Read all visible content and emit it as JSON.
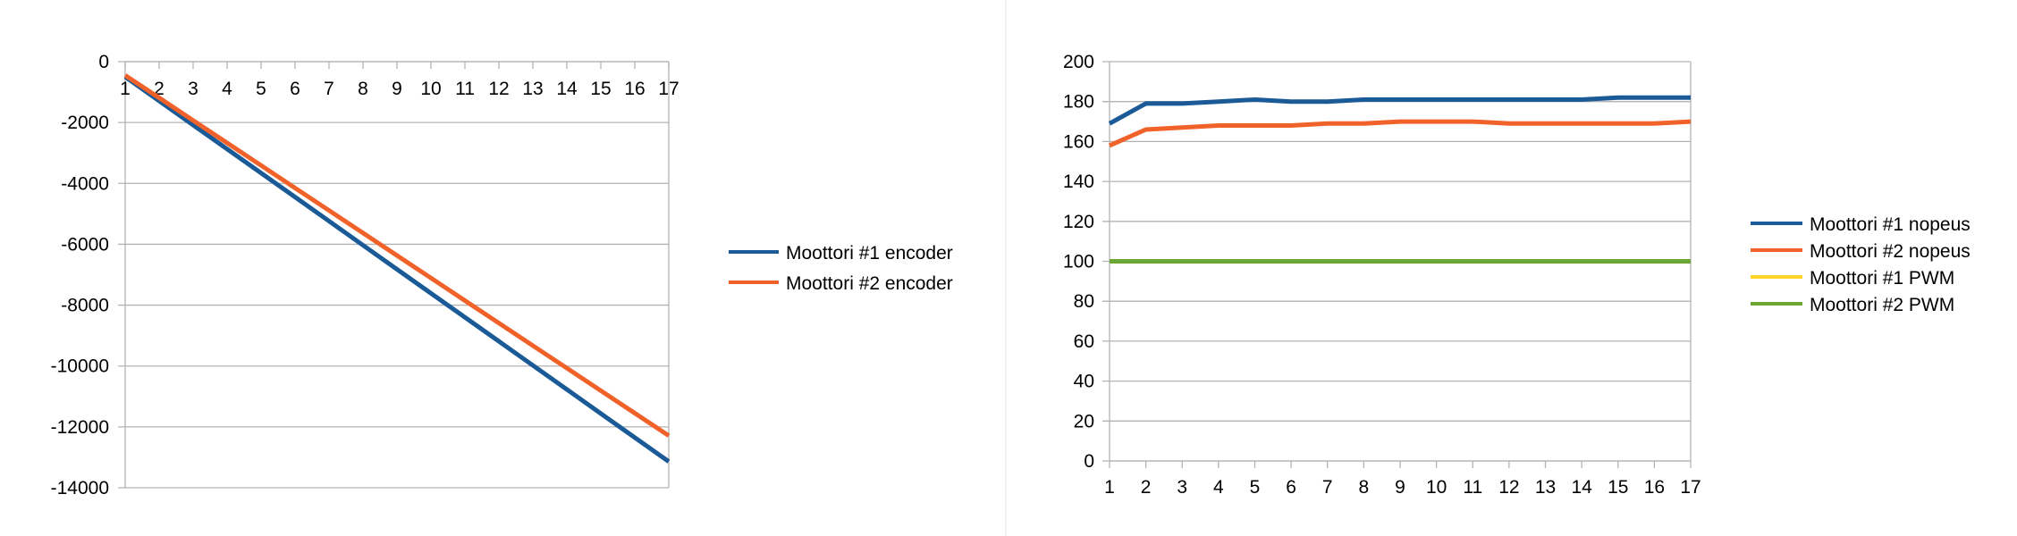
{
  "chart_data": [
    {
      "type": "line",
      "title": "",
      "xlabel": "",
      "ylabel": "",
      "categories": [
        "1",
        "2",
        "3",
        "4",
        "5",
        "6",
        "7",
        "8",
        "9",
        "10",
        "11",
        "12",
        "13",
        "14",
        "15",
        "16",
        "17"
      ],
      "ylim": [
        -14000,
        0
      ],
      "yticks": [
        0,
        -2000,
        -4000,
        -6000,
        -8000,
        -10000,
        -12000,
        -14000
      ],
      "ytick_labels": [
        "0",
        "-2000",
        "-4000",
        "-6000",
        "-8000",
        "-10000",
        "-12000",
        "-14000"
      ],
      "grid": true,
      "legend": "right",
      "series": [
        {
          "name": "Moottori #1 encoder",
          "color": "#1a5a96",
          "values": [
            -500,
            -1290,
            -2080,
            -2870,
            -3660,
            -4450,
            -5240,
            -6030,
            -6820,
            -7610,
            -8400,
            -9190,
            -9980,
            -10770,
            -11560,
            -12350,
            -13140
          ]
        },
        {
          "name": "Moottori #2 encoder",
          "color": "#f0622a",
          "values": [
            -450,
            -1190,
            -1930,
            -2670,
            -3410,
            -4150,
            -4890,
            -5630,
            -6370,
            -7110,
            -7850,
            -8590,
            -9330,
            -10070,
            -10810,
            -11550,
            -12290
          ]
        }
      ]
    },
    {
      "type": "line",
      "title": "",
      "xlabel": "",
      "ylabel": "",
      "categories": [
        "1",
        "2",
        "3",
        "4",
        "5",
        "6",
        "7",
        "8",
        "9",
        "10",
        "11",
        "12",
        "13",
        "14",
        "15",
        "16",
        "17"
      ],
      "ylim": [
        0,
        200
      ],
      "yticks": [
        0,
        20,
        40,
        60,
        80,
        100,
        120,
        140,
        160,
        180,
        200
      ],
      "ytick_labels": [
        "0",
        "20",
        "40",
        "60",
        "80",
        "100",
        "120",
        "140",
        "160",
        "180",
        "200"
      ],
      "grid": true,
      "legend": "right",
      "series": [
        {
          "name": "Moottori #1 nopeus",
          "color": "#1a5a96",
          "values": [
            169,
            179,
            179,
            180,
            181,
            180,
            180,
            181,
            181,
            181,
            181,
            181,
            181,
            181,
            182,
            182,
            182
          ]
        },
        {
          "name": "Moottori #2 nopeus",
          "color": "#f0622a",
          "values": [
            158,
            166,
            167,
            168,
            168,
            168,
            169,
            169,
            170,
            170,
            170,
            169,
            169,
            169,
            169,
            169,
            170
          ]
        },
        {
          "name": "Moottori #1 PWM",
          "color": "#ffd426",
          "values": [
            100,
            100,
            100,
            100,
            100,
            100,
            100,
            100,
            100,
            100,
            100,
            100,
            100,
            100,
            100,
            100,
            100
          ]
        },
        {
          "name": "Moottori #2 PWM",
          "color": "#6aa632",
          "values": [
            100,
            100,
            100,
            100,
            100,
            100,
            100,
            100,
            100,
            100,
            100,
            100,
            100,
            100,
            100,
            100,
            100
          ]
        }
      ]
    }
  ]
}
